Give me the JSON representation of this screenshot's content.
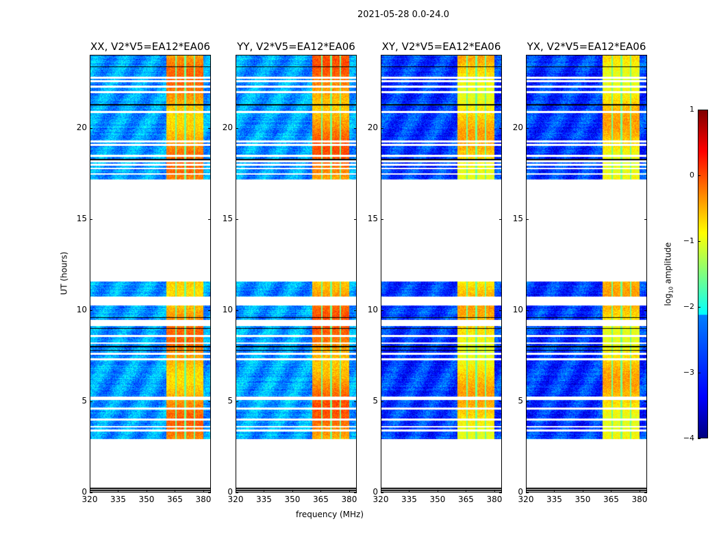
{
  "suptitle": "2021-05-28 0.0-24.0",
  "chart_data": {
    "type": "heatmap",
    "panels": [
      {
        "title": "XX, V2*V5=EA12*EA06",
        "background_log_amp": -2.6,
        "rfi_log_amp": -0.4
      },
      {
        "title": "YY, V2*V5=EA12*EA06",
        "background_log_amp": -2.6,
        "rfi_log_amp": -0.3
      },
      {
        "title": "XY, V2*V5=EA12*EA06",
        "background_log_amp": -3.1,
        "rfi_log_amp": -0.7
      },
      {
        "title": "YX, V2*V5=EA12*EA06",
        "background_log_amp": -3.1,
        "rfi_log_amp": -0.7
      }
    ],
    "xlabel": "frequency (MHz)",
    "ylabel": "UT (hours)",
    "xlim": [
      320,
      384
    ],
    "ylim": [
      0,
      24
    ],
    "xticks": [
      "320",
      "335",
      "350",
      "365",
      "380"
    ],
    "xtick_values": [
      320,
      335,
      350,
      365,
      380
    ],
    "yticks": [
      "0",
      "5",
      "10",
      "15",
      "20"
    ],
    "ytick_values": [
      0,
      5,
      10,
      15,
      20
    ],
    "data_time_ranges": [
      [
        2.93,
        9.13
      ],
      [
        9.46,
        10.25
      ],
      [
        10.74,
        11.6
      ],
      [
        17.2,
        24.0
      ]
    ],
    "flagged_lines": [
      3.4,
      3.6,
      4.0,
      4.6,
      5.1,
      5.2,
      7.3,
      7.6,
      8.2,
      8.6,
      17.5,
      17.8,
      18.0,
      18.2,
      18.5,
      19.1,
      19.3,
      20.9,
      22.0,
      22.3,
      22.6,
      22.8
    ],
    "zero_lines": [
      0.1,
      0.2,
      7.8,
      8.0,
      9.0,
      9.6,
      18.3,
      21.3,
      23.4
    ],
    "rfi_band_mhz": [
      360.5,
      380.0
    ],
    "rfi_gaps_mhz": [
      365.5,
      370.5,
      375.5
    ],
    "colorbar": {
      "label": "log10 amplitude",
      "label_main": "log",
      "label_sub": "10",
      "label_rest": " amplitude",
      "range": [
        -4,
        1
      ],
      "ticks": [
        "1",
        "0",
        "−1",
        "−2",
        "−3",
        "−4"
      ],
      "tick_values": [
        1,
        0,
        -1,
        -2,
        -3,
        -4
      ],
      "colormap": "jet"
    }
  }
}
